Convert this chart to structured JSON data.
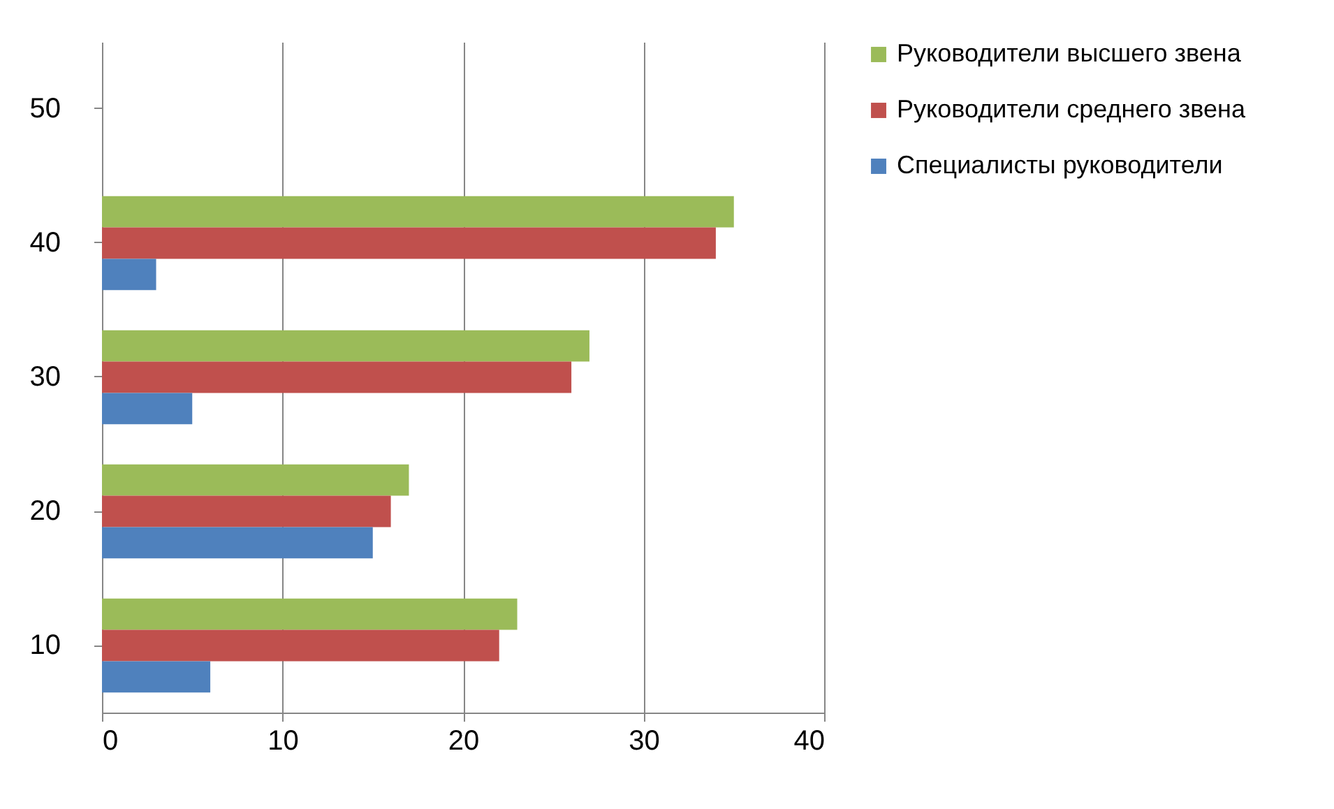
{
  "chart_data": {
    "type": "bar",
    "orientation": "horizontal",
    "categories": [
      "50",
      "40",
      "30",
      "20",
      "10"
    ],
    "series": [
      {
        "name": "Руководители высшего звена",
        "color": "#9bbb59",
        "values": [
          null,
          35,
          27,
          17,
          23
        ]
      },
      {
        "name": "Руководители среднего звена",
        "color": "#c0504d",
        "values": [
          null,
          34,
          26,
          16,
          22
        ]
      },
      {
        "name": "Специалисты руководители",
        "color": "#4f81bd",
        "values": [
          null,
          3,
          5,
          15,
          6
        ]
      }
    ],
    "xlim": [
      0,
      40
    ],
    "xticks": [
      0,
      10,
      20,
      30,
      40
    ],
    "grid": "x",
    "legend": "right"
  }
}
